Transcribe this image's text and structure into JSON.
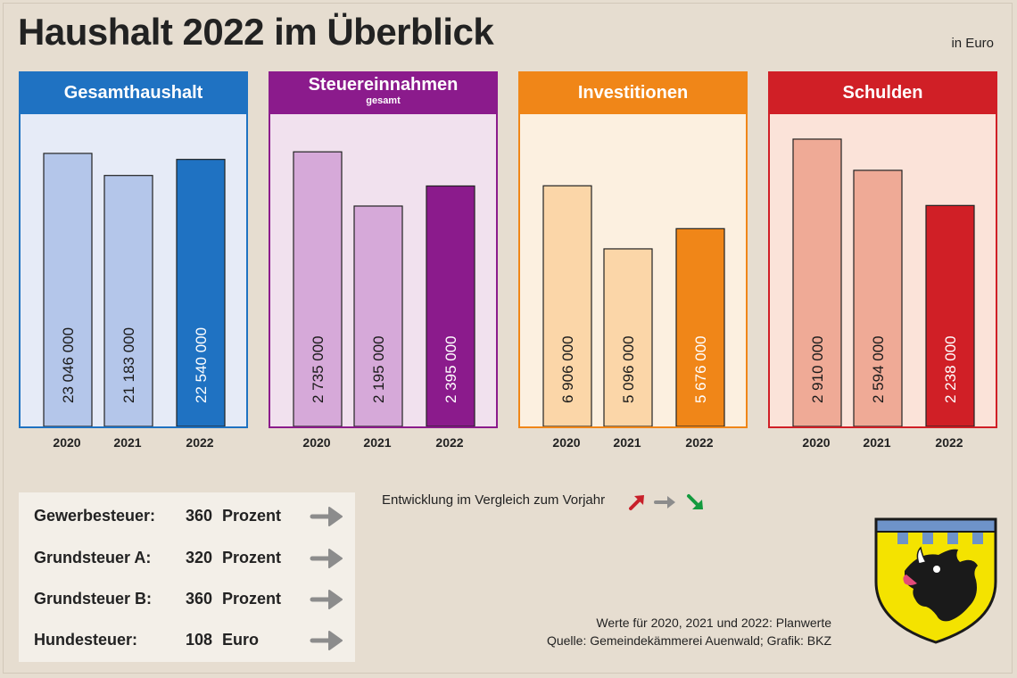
{
  "header": {
    "title": "Haushalt 2022 im Überblick",
    "unit": "in Euro"
  },
  "chart_data": [
    {
      "type": "bar",
      "title": "Gesamthaushalt",
      "subtitle": "",
      "categories": [
        "2020",
        "2021",
        "2022"
      ],
      "values": [
        23046000,
        21183000,
        22540000
      ],
      "value_labels": [
        "23 046 000",
        "21 183 000",
        "22 540 000"
      ],
      "colors": [
        "#b4c6ea",
        "#b4c6ea",
        "#1f72c2"
      ],
      "header_color": "#1f72c2",
      "bg_color": "#e6ebf7",
      "ylim": [
        0,
        25000000
      ]
    },
    {
      "type": "bar",
      "title": "Steuereinnahmen",
      "subtitle": "gesamt",
      "categories": [
        "2020",
        "2021",
        "2022"
      ],
      "values": [
        2735000,
        2195000,
        2395000
      ],
      "value_labels": [
        "2 735 000",
        "2 195 000",
        "2 395 000"
      ],
      "colors": [
        "#d6a9d9",
        "#d6a9d9",
        "#8b1b8c"
      ],
      "header_color": "#8b1b8c",
      "bg_color": "#f1e1ee",
      "ylim": [
        0,
        2950000
      ]
    },
    {
      "type": "bar",
      "title": "Investitionen",
      "subtitle": "",
      "categories": [
        "2020",
        "2021",
        "2022"
      ],
      "values": [
        6906000,
        5096000,
        5676000
      ],
      "value_labels": [
        "6 906 000",
        "5 096 000",
        "5 676 000"
      ],
      "colors": [
        "#fbd6a8",
        "#fbd6a8",
        "#f08618"
      ],
      "header_color": "#f08618",
      "bg_color": "#fcf0e0",
      "ylim": [
        0,
        8500000
      ]
    },
    {
      "type": "bar",
      "title": "Schulden",
      "subtitle": "",
      "categories": [
        "2020",
        "2021",
        "2022"
      ],
      "values": [
        2910000,
        2594000,
        2238000
      ],
      "value_labels": [
        "2 910 000",
        "2 594 000",
        "2 238 000"
      ],
      "colors": [
        "#efaa96",
        "#efaa96",
        "#d01f26"
      ],
      "header_color": "#d01f26",
      "bg_color": "#fbe3d9",
      "ylim": [
        0,
        3000000
      ]
    }
  ],
  "taxes": [
    {
      "label": "Gewerbesteuer:",
      "value": "360",
      "unit": "Prozent"
    },
    {
      "label": "Grundsteuer A:",
      "value": "320",
      "unit": "Prozent"
    },
    {
      "label": "Grundsteuer B:",
      "value": "360",
      "unit": "Prozent"
    },
    {
      "label": "Hundesteuer:",
      "value": "108",
      "unit": "Euro"
    }
  ],
  "legend": {
    "text": "Entwicklung im Vergleich zum Vorjahr",
    "up_color": "#c8202a",
    "same_color": "#8c8c8c",
    "down_color": "#139a3e"
  },
  "notes": {
    "planwerte": "Werte für 2020, 2021 und 2022: Planwerte",
    "quelle": "Quelle: Gemeindekämmerei Auenwald; Grafik: BKZ"
  }
}
